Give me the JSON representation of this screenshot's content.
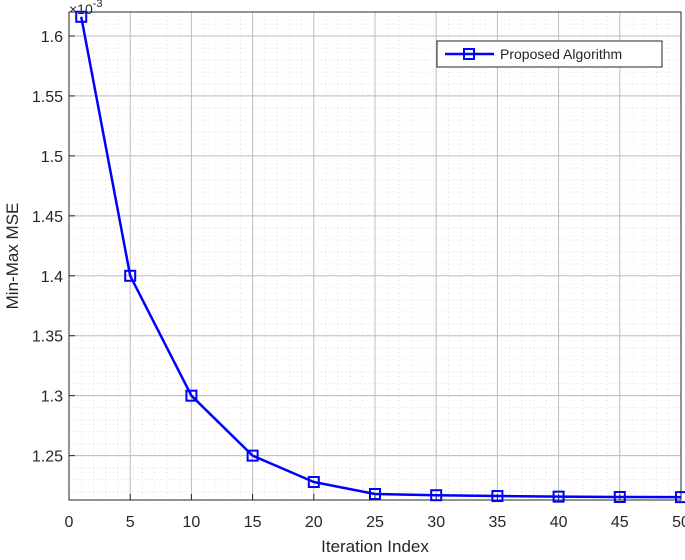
{
  "chart_data": {
    "type": "line",
    "title": "",
    "xlabel": "Iteration Index",
    "ylabel": "Min-Max MSE",
    "y_exponent_label": "×10",
    "y_exponent_power": "-3",
    "xlim": [
      0,
      50
    ],
    "ylim": [
      1.213,
      1.62
    ],
    "x_ticks": [
      0,
      5,
      10,
      15,
      20,
      25,
      30,
      35,
      40,
      45,
      50
    ],
    "x_tick_labels": [
      "0",
      "5",
      "10",
      "15",
      "20",
      "25",
      "30",
      "35",
      "40",
      "45",
      "50"
    ],
    "y_ticks": [
      1.25,
      1.3,
      1.35,
      1.4,
      1.45,
      1.5,
      1.55,
      1.6
    ],
    "y_tick_labels": [
      "1.25",
      "1.3",
      "1.35",
      "1.4",
      "1.45",
      "1.5",
      "1.55",
      "1.6"
    ],
    "y_minor_step": 0.01,
    "x_minor_step": 1,
    "grid": true,
    "legend_position": "top-right",
    "series": [
      {
        "name": "Proposed Algorithm",
        "color": "#0000ff",
        "marker": "square",
        "x": [
          1,
          5,
          10,
          15,
          20,
          25,
          30,
          35,
          40,
          45,
          50
        ],
        "y": [
          1.616,
          1.4,
          1.3,
          1.25,
          1.228,
          1.218,
          1.217,
          1.2163,
          1.2158,
          1.2155,
          1.2154
        ]
      }
    ]
  }
}
